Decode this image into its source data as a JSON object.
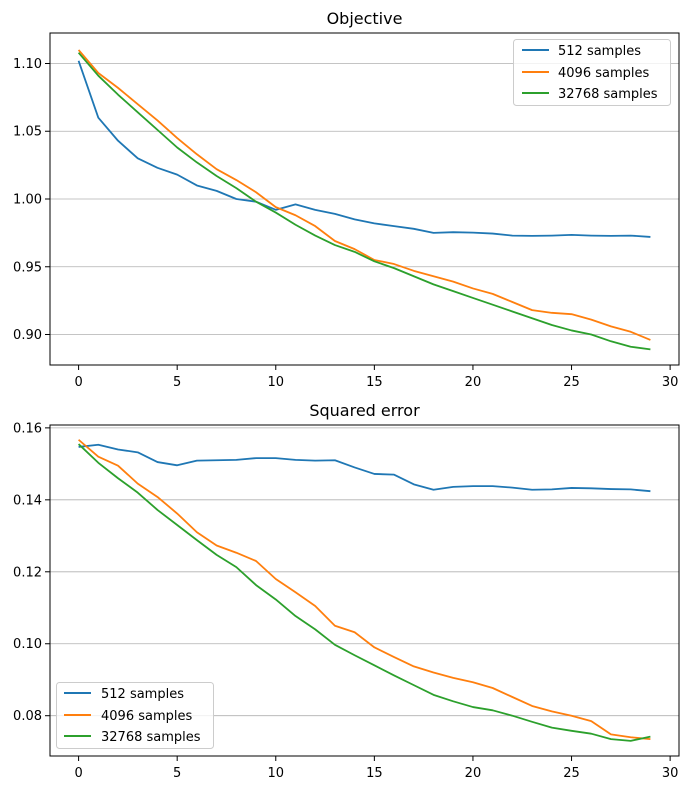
{
  "chart_data": [
    {
      "type": "line",
      "title": "Objective",
      "xlabel": "",
      "ylabel": "",
      "xlim": [
        -1.45,
        30.45
      ],
      "ylim": [
        0.8775,
        1.1225
      ],
      "xticks": [
        0,
        5,
        10,
        15,
        20,
        25,
        30
      ],
      "yticks": [
        0.9,
        0.95,
        1.0,
        1.05,
        1.1
      ],
      "ytick_labels": [
        "0.90",
        "0.95",
        "1.00",
        "1.05",
        "1.10"
      ],
      "grid": "y",
      "legend_position": "upper right",
      "x": [
        0,
        1,
        2,
        3,
        4,
        5,
        6,
        7,
        8,
        9,
        10,
        11,
        12,
        13,
        14,
        15,
        16,
        17,
        18,
        19,
        20,
        21,
        22,
        23,
        24,
        25,
        26,
        27,
        28,
        29
      ],
      "series": [
        {
          "name": "512 samples",
          "color": "#1f77b4",
          "values": [
            1.102,
            1.06,
            1.043,
            1.03,
            1.023,
            1.018,
            1.01,
            1.006,
            1.0,
            0.998,
            0.992,
            0.996,
            0.992,
            0.989,
            0.985,
            0.982,
            0.98,
            0.978,
            0.975,
            0.9755,
            0.9752,
            0.9745,
            0.973,
            0.9728,
            0.973,
            0.9735,
            0.973,
            0.9728,
            0.973,
            0.972
          ]
        },
        {
          "name": "4096 samples",
          "color": "#ff7f0e",
          "values": [
            1.11,
            1.093,
            1.082,
            1.07,
            1.058,
            1.045,
            1.033,
            1.022,
            1.014,
            1.005,
            0.994,
            0.988,
            0.98,
            0.969,
            0.963,
            0.955,
            0.952,
            0.947,
            0.943,
            0.939,
            0.934,
            0.93,
            0.924,
            0.918,
            0.916,
            0.915,
            0.911,
            0.906,
            0.902,
            0.896
          ]
        },
        {
          "name": "32768 samples",
          "color": "#2ca02c",
          "values": [
            1.108,
            1.091,
            1.077,
            1.064,
            1.051,
            1.038,
            1.027,
            1.017,
            1.008,
            0.998,
            0.99,
            0.981,
            0.973,
            0.966,
            0.961,
            0.954,
            0.949,
            0.943,
            0.937,
            0.932,
            0.927,
            0.922,
            0.917,
            0.912,
            0.907,
            0.903,
            0.9,
            0.895,
            0.891,
            0.889
          ]
        }
      ]
    },
    {
      "type": "line",
      "title": "Squared error",
      "xlabel": "",
      "ylabel": "",
      "xlim": [
        -1.45,
        30.45
      ],
      "ylim": [
        0.0688,
        0.1608
      ],
      "xticks": [
        0,
        5,
        10,
        15,
        20,
        25,
        30
      ],
      "yticks": [
        0.08,
        0.1,
        0.12,
        0.14,
        0.16
      ],
      "ytick_labels": [
        "0.08",
        "0.10",
        "0.12",
        "0.14",
        "0.16"
      ],
      "grid": "y",
      "legend_position": "lower left",
      "x": [
        0,
        1,
        2,
        3,
        4,
        5,
        6,
        7,
        8,
        9,
        10,
        11,
        12,
        13,
        14,
        15,
        16,
        17,
        18,
        19,
        20,
        21,
        22,
        23,
        24,
        25,
        26,
        27,
        28,
        29
      ],
      "series": [
        {
          "name": "512 samples",
          "color": "#1f77b4",
          "values": [
            0.1547,
            0.1553,
            0.154,
            0.1532,
            0.1505,
            0.1496,
            0.1509,
            0.151,
            0.1511,
            0.1516,
            0.1516,
            0.1511,
            0.1509,
            0.151,
            0.149,
            0.1472,
            0.147,
            0.1443,
            0.1428,
            0.1436,
            0.1438,
            0.1438,
            0.1434,
            0.1428,
            0.1429,
            0.1433,
            0.1432,
            0.143,
            0.1429,
            0.1424
          ]
        },
        {
          "name": "4096 samples",
          "color": "#ff7f0e",
          "values": [
            0.1567,
            0.152,
            0.1495,
            0.1445,
            0.1408,
            0.1362,
            0.131,
            0.1273,
            0.1253,
            0.123,
            0.118,
            0.1143,
            0.1105,
            0.105,
            0.1032,
            0.099,
            0.0963,
            0.0937,
            0.092,
            0.0905,
            0.0893,
            0.0877,
            0.0852,
            0.0827,
            0.0812,
            0.08,
            0.0785,
            0.0748,
            0.074,
            0.0735
          ]
        },
        {
          "name": "32768 samples",
          "color": "#2ca02c",
          "values": [
            0.1555,
            0.1503,
            0.146,
            0.142,
            0.1372,
            0.133,
            0.1288,
            0.1247,
            0.1213,
            0.1163,
            0.1123,
            0.1077,
            0.104,
            0.0997,
            0.0968,
            0.094,
            0.0912,
            0.0885,
            0.0858,
            0.084,
            0.0824,
            0.0815,
            0.08,
            0.0783,
            0.0767,
            0.0758,
            0.075,
            0.0735,
            0.073,
            0.0742
          ]
        }
      ]
    }
  ]
}
